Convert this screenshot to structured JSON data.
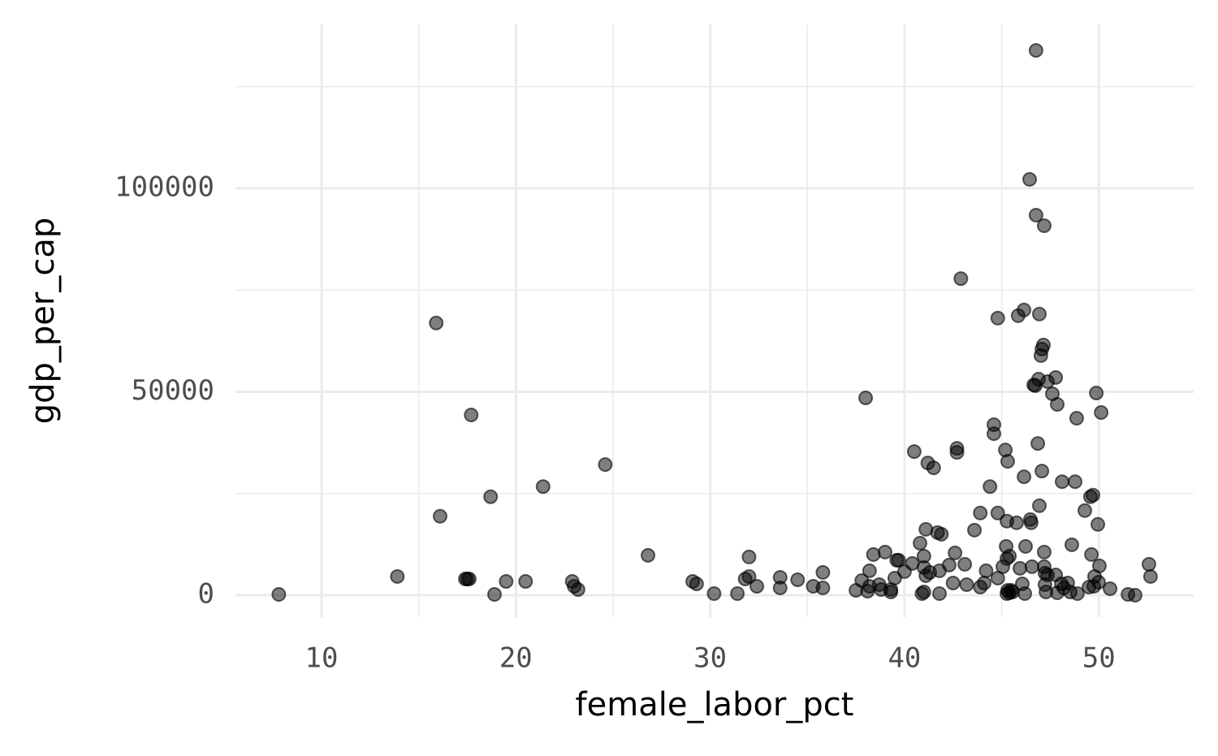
{
  "chart_data": {
    "type": "scatter",
    "x_label": "female_labor_pct",
    "y_label": "gdp_per_cap",
    "x": [
      7.8,
      13.9,
      15.9,
      16.1,
      17.4,
      17.5,
      17.6,
      17.7,
      18.7,
      18.9,
      19.5,
      20.5,
      21.4,
      22.9,
      23.0,
      23.2,
      24.6,
      26.8,
      29.1,
      29.3,
      30.2,
      31.4,
      31.8,
      32.0,
      32.0,
      32.4,
      33.6,
      33.6,
      34.5,
      35.3,
      35.8,
      35.8,
      37.5,
      37.8,
      38.0,
      38.1,
      38.2,
      38.2,
      38.4,
      38.7,
      38.8,
      39.0,
      39.3,
      39.3,
      39.5,
      39.6,
      39.7,
      40.0,
      40.4,
      40.5,
      40.8,
      40.9,
      41.0,
      41.0,
      41.0,
      41.1,
      41.1,
      41.2,
      41.3,
      41.5,
      41.7,
      41.8,
      41.9,
      41.8,
      42.3,
      42.5,
      42.6,
      42.7,
      42.7,
      42.9,
      43.1,
      43.2,
      43.6,
      43.9,
      43.9,
      44.1,
      44.2,
      44.4,
      44.6,
      44.6,
      44.8,
      44.8,
      44.8,
      45.06,
      45.19,
      45.27,
      45.31,
      45.31,
      45.27,
      45.27,
      45.23,
      45.4,
      45.48,
      45.56,
      45.4,
      45.77,
      45.85,
      45.94,
      46.06,
      46.15,
      46.15,
      46.23,
      46.19,
      46.48,
      46.44,
      46.52,
      46.56,
      46.65,
      46.73,
      46.77,
      46.86,
      46.9,
      46.94,
      46.94,
      47.02,
      47.07,
      47.07,
      47.15,
      47.19,
      47.23,
      47.19,
      47.23,
      47.19,
      47.28,
      47.36,
      47.36,
      47.61,
      47.78,
      47.78,
      47.86,
      47.86,
      48.07,
      48.11,
      48.2,
      48.4,
      48.53,
      48.61,
      48.78,
      48.86,
      48.9,
      49.28,
      49.49,
      49.57,
      49.62,
      49.7,
      49.74,
      49.78,
      49.87,
      49.95,
      49.99,
      50.03,
      50.12,
      50.58,
      51.5,
      51.87,
      52.58,
      52.66,
      46.77
    ],
    "values": [
      200,
      4600,
      66900,
      19400,
      4000,
      4000,
      4000,
      44300,
      24200,
      200,
      3400,
      3400,
      26700,
      3400,
      2200,
      1400,
      32100,
      9800,
      3400,
      2800,
      400,
      400,
      4000,
      4600,
      9400,
      2200,
      1800,
      4400,
      3800,
      2200,
      5600,
      1800,
      1200,
      3600,
      48500,
      1000,
      2200,
      6000,
      10000,
      2600,
      1400,
      10600,
      1400,
      800,
      4200,
      8600,
      8600,
      5800,
      7800,
      35300,
      12800,
      400,
      800,
      6800,
      9600,
      16200,
      4800,
      32500,
      5600,
      31300,
      15400,
      6000,
      15000,
      400,
      7400,
      3000,
      10400,
      36100,
      35100,
      77800,
      7600,
      2600,
      16000,
      2000,
      20200,
      3000,
      6000,
      26700,
      39700,
      41900,
      68100,
      20200,
      4200,
      7000,
      35700,
      400,
      1200,
      32900,
      9000,
      18200,
      12000,
      600,
      1200,
      800,
      9600,
      17800,
      68700,
      6600,
      2800,
      29100,
      70100,
      12000,
      400,
      18600,
      102200,
      17800,
      7000,
      51700,
      51500,
      93400,
      37300,
      53100,
      22000,
      69100,
      58900,
      30500,
      60500,
      61500,
      90800,
      2600,
      7000,
      5400,
      10600,
      800,
      5000,
      52500,
      49500,
      53500,
      5000,
      46900,
      600,
      2800,
      27900,
      1800,
      3000,
      800,
      12400,
      27900,
      43500,
      400,
      20800,
      2000,
      24200,
      10000,
      24600,
      2200,
      4600,
      49700,
      17400,
      3200,
      7200,
      44900,
      1600,
      200,
      0,
      7600,
      4600,
      133900
    ],
    "color": "#000000",
    "xlim": [
      5.57,
      54.88
    ],
    "ylim": [
      -5390,
      140300
    ],
    "xticks": [
      10,
      20,
      30,
      40,
      50
    ],
    "yticks": [
      0,
      50000,
      100000
    ],
    "grid": true
  }
}
